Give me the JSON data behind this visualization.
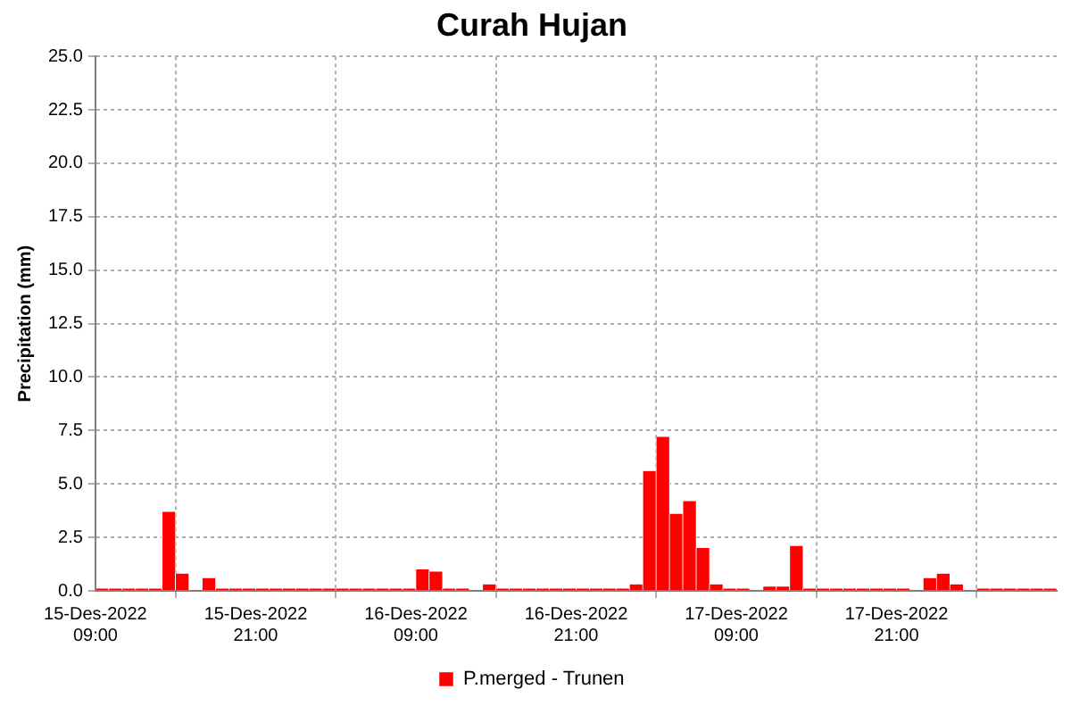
{
  "chart_data": {
    "type": "bar",
    "title": "Curah Hujan",
    "ylabel": "Precipitation (mm)",
    "x": [
      "2022-12-15T09:30",
      "2022-12-15T10:30",
      "2022-12-15T11:30",
      "2022-12-15T12:30",
      "2022-12-15T13:30",
      "2022-12-15T14:30",
      "2022-12-15T15:30",
      "2022-12-15T16:30",
      "2022-12-15T17:30",
      "2022-12-15T18:30",
      "2022-12-15T19:30",
      "2022-12-15T20:30",
      "2022-12-15T21:30",
      "2022-12-15T22:30",
      "2022-12-15T23:30",
      "2022-12-16T00:30",
      "2022-12-16T01:30",
      "2022-12-16T02:30",
      "2022-12-16T03:30",
      "2022-12-16T04:30",
      "2022-12-16T05:30",
      "2022-12-16T06:30",
      "2022-12-16T07:30",
      "2022-12-16T08:30",
      "2022-12-16T09:30",
      "2022-12-16T10:30",
      "2022-12-16T11:30",
      "2022-12-16T12:30",
      "2022-12-16T13:30",
      "2022-12-16T14:30",
      "2022-12-16T15:30",
      "2022-12-16T16:30",
      "2022-12-16T17:30",
      "2022-12-16T18:30",
      "2022-12-16T19:30",
      "2022-12-16T20:30",
      "2022-12-16T21:30",
      "2022-12-16T22:30",
      "2022-12-16T23:30",
      "2022-12-17T00:30",
      "2022-12-17T01:30",
      "2022-12-17T02:30",
      "2022-12-17T03:30",
      "2022-12-17T04:30",
      "2022-12-17T05:30",
      "2022-12-17T06:30",
      "2022-12-17T07:30",
      "2022-12-17T08:30",
      "2022-12-17T09:30",
      "2022-12-17T10:30",
      "2022-12-17T11:30",
      "2022-12-17T12:30",
      "2022-12-17T13:30",
      "2022-12-17T14:30",
      "2022-12-17T15:30",
      "2022-12-17T16:30",
      "2022-12-17T17:30",
      "2022-12-17T18:30",
      "2022-12-17T19:30",
      "2022-12-17T20:30",
      "2022-12-17T21:30",
      "2022-12-17T22:30",
      "2022-12-17T23:30",
      "2022-12-18T00:30",
      "2022-12-18T01:30",
      "2022-12-18T02:30",
      "2022-12-18T03:30",
      "2022-12-18T04:30",
      "2022-12-18T05:30",
      "2022-12-18T06:30",
      "2022-12-18T07:30",
      "2022-12-18T08:30"
    ],
    "series": [
      {
        "name": "P.merged - Trunen",
        "color": "#ff0000",
        "values": [
          0.1,
          0.1,
          0.1,
          0.1,
          0.1,
          3.7,
          0.8,
          0,
          0.6,
          0.1,
          0.1,
          0.1,
          0.1,
          0.1,
          0.1,
          0.1,
          0.1,
          0.1,
          0.1,
          0.1,
          0.1,
          0.1,
          0.1,
          0.1,
          1.0,
          0.9,
          0.1,
          0.1,
          0,
          0.3,
          0.1,
          0.1,
          0.1,
          0.1,
          0.1,
          0.1,
          0.1,
          0.1,
          0.1,
          0.1,
          0.3,
          5.6,
          7.2,
          3.6,
          4.2,
          2.0,
          0.3,
          0.1,
          0.1,
          0,
          0.2,
          0.2,
          2.1,
          0.1,
          0.1,
          0.1,
          0.1,
          0.1,
          0.1,
          0.1,
          0.1,
          0,
          0.6,
          0.8,
          0.3,
          0,
          0.1,
          0.1,
          0.1,
          0.1,
          0.1,
          0.1
        ]
      }
    ],
    "xlim": [
      "2022-12-15T09:00",
      "2022-12-18T09:00"
    ],
    "xticks": [
      {
        "value": "2022-12-15T09:00",
        "label": "15-Des-2022\n09:00"
      },
      {
        "value": "2022-12-15T21:00",
        "label": "15-Des-2022\n21:00"
      },
      {
        "value": "2022-12-16T09:00",
        "label": "16-Des-2022\n09:00"
      },
      {
        "value": "2022-12-16T21:00",
        "label": "16-Des-2022\n21:00"
      },
      {
        "value": "2022-12-17T09:00",
        "label": "17-Des-2022\n09:00"
      },
      {
        "value": "2022-12-17T21:00",
        "label": "17-Des-2022\n21:00"
      }
    ],
    "ylim": [
      0,
      25
    ],
    "yticks": [
      {
        "value": 0,
        "label": "0.0"
      },
      {
        "value": 2.5,
        "label": "2.5"
      },
      {
        "value": 5,
        "label": "5.0"
      },
      {
        "value": 7.5,
        "label": "7.5"
      },
      {
        "value": 10,
        "label": "10.0"
      },
      {
        "value": 12.5,
        "label": "12.5"
      },
      {
        "value": 15,
        "label": "15.0"
      },
      {
        "value": 17.5,
        "label": "17.5"
      },
      {
        "value": 20,
        "label": "20.0"
      },
      {
        "value": 22.5,
        "label": "22.5"
      },
      {
        "value": 25,
        "label": "25.0"
      }
    ],
    "grid": true,
    "legend": "bottom"
  }
}
